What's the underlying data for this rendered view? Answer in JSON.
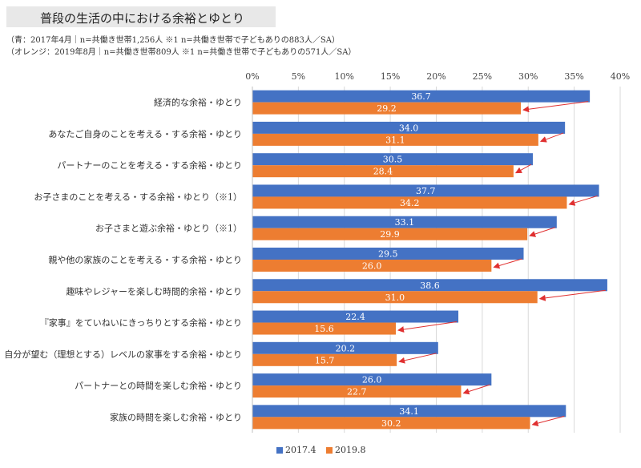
{
  "header": {
    "title": "普段の生活の中における余裕とゆとり",
    "note_blue": "（青：2017年4月｜n=共働き世帯1,256人 ※1 n=共働き世帯で子どもありの883人／SA）",
    "note_orange": "（オレンジ：2019年8月｜n=共働き世帯809人 ※1 n=共働き世帯で子どもありの571人／SA）"
  },
  "colors": {
    "series_2017": "#4472C4",
    "series_2019": "#ED7D31",
    "arrow": "#E03030",
    "grid": "#D9D9D9"
  },
  "chart_data": {
    "type": "bar",
    "orientation": "horizontal",
    "title": "普段の生活の中における余裕とゆとり",
    "xlim": [
      0,
      40
    ],
    "tick_values": [
      0,
      5,
      10,
      15,
      20,
      25,
      30,
      35,
      40
    ],
    "tick_labels": [
      "0%",
      "5%",
      "10%",
      "15%",
      "20%",
      "25%",
      "30%",
      "35%",
      "40%"
    ],
    "grid": true,
    "legend_position": "bottom",
    "categories": [
      "経済的な余裕・ゆとり",
      "あなたご自身のことを考える・する余裕・ゆとり",
      "パートナーのことを考える・する余裕・ゆとり",
      "お子さまのことを考える・する余裕・ゆとり（※1）",
      "お子さまと遊ぶ余裕・ゆとり（※1）",
      "親や他の家族のことを考える・する余裕・ゆとり",
      "趣味やレジャーを楽しむ時間的余裕・ゆとり",
      "『家事』をていねいにきっちりとする余裕・ゆとり",
      "自分が望む（理想とする）レベルの家事をする余裕・ゆとり",
      "パートナーとの時間を楽しむ余裕・ゆとり",
      "家族の時間を楽しむ余裕・ゆとり"
    ],
    "series": [
      {
        "name": "2017.4",
        "values": [
          36.7,
          34.0,
          30.5,
          37.7,
          33.1,
          29.5,
          38.6,
          22.4,
          20.2,
          26.0,
          34.1
        ]
      },
      {
        "name": "2019.8",
        "values": [
          29.2,
          31.1,
          28.4,
          34.2,
          29.9,
          26.0,
          31.0,
          15.6,
          15.7,
          22.7,
          30.2
        ]
      }
    ],
    "data_labels": [
      [
        "36.7",
        "34.0",
        "30.5",
        "37.7",
        "33.1",
        "29.5",
        "38.6",
        "22.4",
        "20.2",
        "26.0",
        "34.1"
      ],
      [
        "29.2",
        "31.1",
        "28.4",
        "34.2",
        "29.9",
        "26.0",
        "31.0",
        "15.6",
        "15.7",
        "22.7",
        "30.2"
      ]
    ],
    "annotations": "red arrows point from each 2017.4 bar end to the corresponding 2019.8 bar end"
  }
}
